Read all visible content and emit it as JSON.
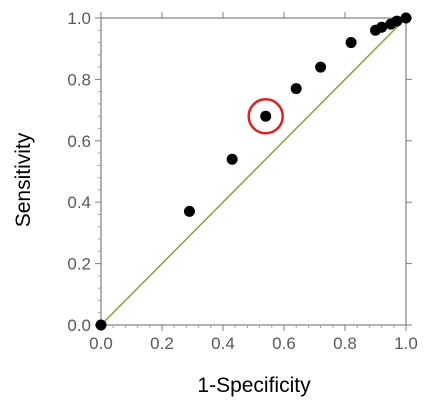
{
  "chart_data": {
    "type": "scatter",
    "title": "",
    "xlabel": "1-Specificity",
    "ylabel": "Sensitivity",
    "xlim": [
      0.0,
      1.0
    ],
    "ylim": [
      0.0,
      1.0
    ],
    "x_ticks": [
      "0.0",
      "0.2",
      "0.4",
      "0.6",
      "0.8",
      "1.0"
    ],
    "y_ticks": [
      "0.0",
      "0.2",
      "0.4",
      "0.6",
      "0.8",
      "1.0"
    ],
    "grid": false,
    "legend": "none",
    "series": [
      {
        "points": [
          {
            "x": 0.0,
            "y": 0.0
          },
          {
            "x": 0.29,
            "y": 0.37
          },
          {
            "x": 0.43,
            "y": 0.54
          },
          {
            "x": 0.54,
            "y": 0.68
          },
          {
            "x": 0.64,
            "y": 0.77
          },
          {
            "x": 0.72,
            "y": 0.84
          },
          {
            "x": 0.82,
            "y": 0.92
          },
          {
            "x": 0.9,
            "y": 0.96
          },
          {
            "x": 0.92,
            "y": 0.97
          },
          {
            "x": 0.95,
            "y": 0.98
          },
          {
            "x": 0.97,
            "y": 0.99
          },
          {
            "x": 1.0,
            "y": 1.0
          }
        ],
        "color": "#000000"
      }
    ],
    "reference_line": {
      "from": [
        0.0,
        0.0
      ],
      "to": [
        1.0,
        1.0
      ],
      "color": "#9a9a3a"
    },
    "highlighted_point": {
      "x": 0.54,
      "y": 0.68,
      "marker": "circle",
      "color": "#e02020"
    }
  }
}
